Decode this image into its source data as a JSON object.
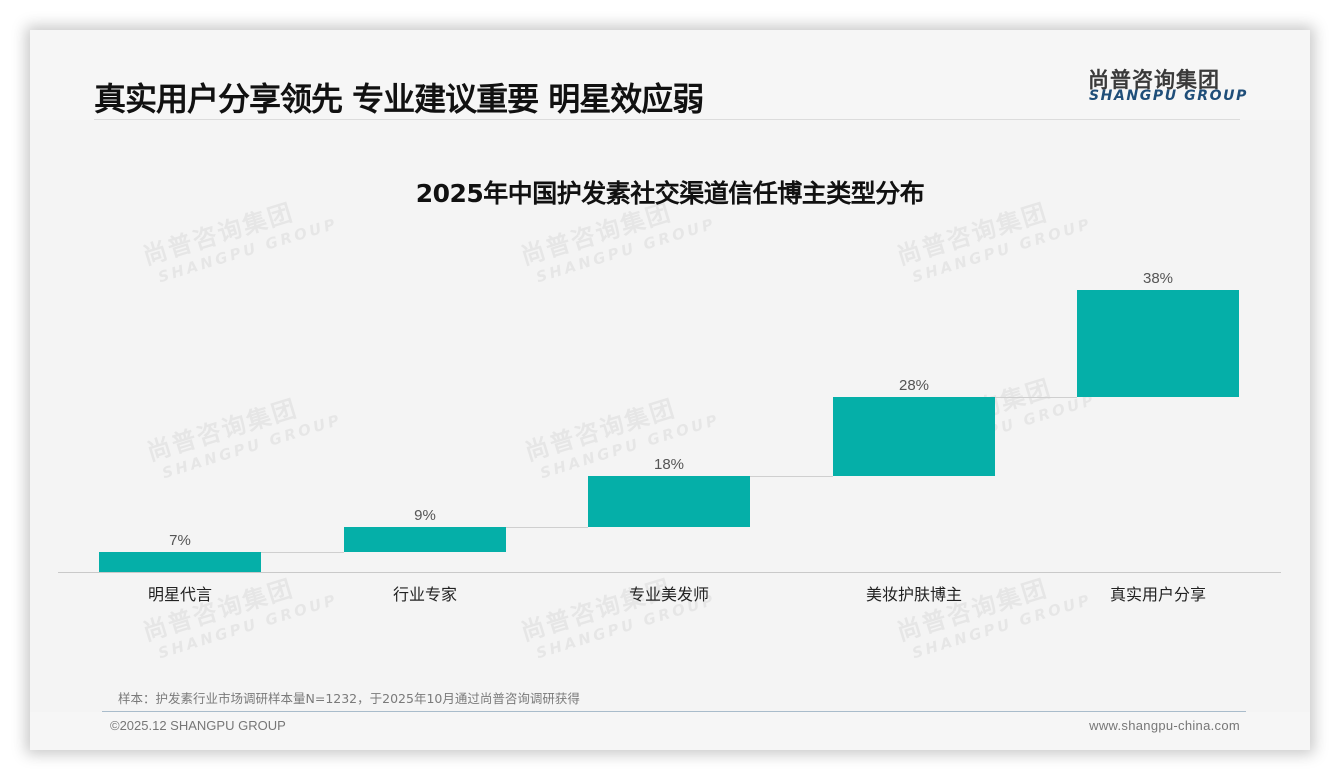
{
  "header": {
    "title": "真实用户分享领先 专业建议重要 明星效应弱",
    "logo_cn": "尚普咨询集团",
    "logo_en": "SHANGPU GROUP"
  },
  "watermark": {
    "cn": "尚普咨询集团",
    "en": "SHANGPU GROUP"
  },
  "colors": {
    "bar": "#05afa8",
    "logo_en": "#1f4e79",
    "background": "#f4f4f4"
  },
  "chart_data": {
    "type": "bar",
    "subtype": "waterfall",
    "title": "2025年中国护发素社交渠道信任博主类型分布",
    "categories": [
      "明星代言",
      "行业专家",
      "专业美发师",
      "美妆护肤博主",
      "真实用户分享"
    ],
    "values": [
      7,
      9,
      18,
      28,
      38
    ],
    "value_labels": [
      "7%",
      "9%",
      "18%",
      "28%",
      "38%"
    ],
    "cumulative_start": [
      0,
      7,
      16,
      34,
      62
    ],
    "unit": "%",
    "xlabel": "",
    "ylabel": "",
    "grid": false,
    "legend": false
  },
  "footer": {
    "note": "样本：护发素行业市场调研样本量N=1232，于2025年10月通过尚普咨询调研获得",
    "copyright": "©2025.12 SHANGPU GROUP",
    "website": "www.shangpu-china.com"
  }
}
